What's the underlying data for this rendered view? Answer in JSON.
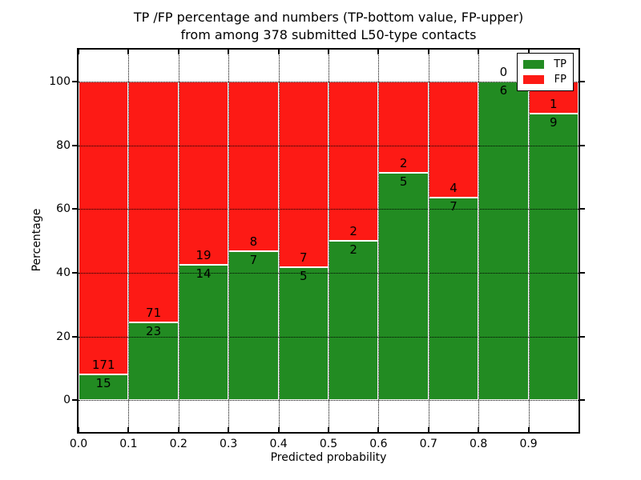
{
  "figure": {
    "title_line1": "TP /FP percentage and numbers (TP-bottom value, FP-upper)",
    "title_line2": "from among 378 submitted L50-type contacts"
  },
  "chart_data": {
    "type": "bar",
    "stacked": true,
    "normalized_to_100_percent": true,
    "title": "TP /FP percentage and numbers (TP-bottom value, FP-upper)",
    "subtitle": "from among 378 submitted L50-type contacts",
    "xlabel": "Predicted probability",
    "ylabel": "Percentage",
    "xlim": [
      0,
      1.0
    ],
    "ylim": [
      -10,
      110
    ],
    "grid": "dotted",
    "legend_position": "upper right",
    "bins": [
      [
        0.0,
        0.1
      ],
      [
        0.1,
        0.2
      ],
      [
        0.2,
        0.3
      ],
      [
        0.3,
        0.4
      ],
      [
        0.4,
        0.5
      ],
      [
        0.5,
        0.6
      ],
      [
        0.6,
        0.7
      ],
      [
        0.7,
        0.8
      ],
      [
        0.8,
        0.9
      ],
      [
        0.9,
        1.0
      ]
    ],
    "series": [
      {
        "name": "TP",
        "color": "#228b22",
        "values": [
          15,
          23,
          14,
          7,
          5,
          2,
          5,
          7,
          6,
          9
        ]
      },
      {
        "name": "FP",
        "color": "#fd1a15",
        "values": [
          171,
          71,
          19,
          8,
          7,
          2,
          2,
          4,
          0,
          1
        ]
      }
    ],
    "xticks": {
      "values": [
        0.0,
        0.1,
        0.2,
        0.3,
        0.4,
        0.5,
        0.6,
        0.7,
        0.8,
        0.9
      ],
      "labels": [
        "0.0",
        "0.1",
        "0.2",
        "0.3",
        "0.4",
        "0.5",
        "0.6",
        "0.7",
        "0.8",
        "0.9"
      ]
    },
    "yticks": {
      "values": [
        0,
        20,
        40,
        60,
        80,
        100
      ],
      "labels": [
        "0",
        "20",
        "40",
        "60",
        "80",
        "100"
      ]
    },
    "colors": {
      "tp": "#228b22",
      "fp": "#fd1a15",
      "grid": "#000000",
      "background": "#ffffff"
    }
  }
}
